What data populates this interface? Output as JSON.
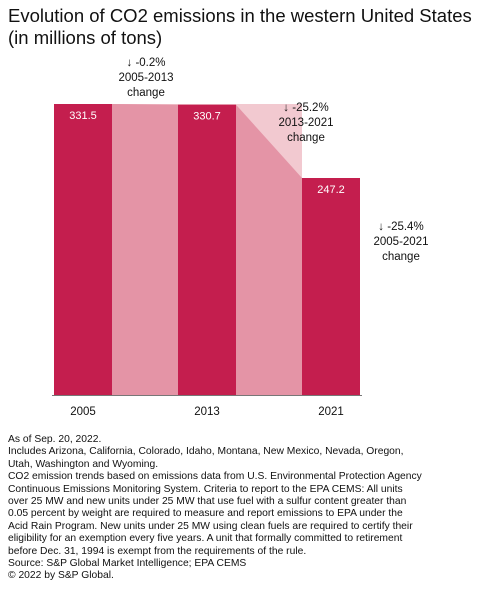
{
  "title_lines": [
    "Evolution of CO2 emissions in the western United States",
    "(in millions of tons)"
  ],
  "colors": {
    "bar": "#c41e4e",
    "connector_light": "#f2c9d0",
    "connector_mid": "#e494a6",
    "axis": "#777777",
    "text": "#111111",
    "bar_label": "#ffffff"
  },
  "chart_data": {
    "type": "bar",
    "categories": [
      "2005",
      "2013",
      "2021"
    ],
    "values": [
      331.5,
      330.7,
      247.2
    ],
    "value_labels": [
      "331.5",
      "330.7",
      "247.2"
    ],
    "ylim": [
      0,
      331.5
    ],
    "annotations": [
      {
        "id": "ann-2005-2013",
        "arrow": "↓",
        "lines": [
          "-0.2%",
          "2005-2013",
          "change"
        ]
      },
      {
        "id": "ann-2013-2021",
        "arrow": "↓",
        "lines": [
          "-25.2%",
          "2013-2021",
          "change"
        ]
      },
      {
        "id": "ann-2005-2021",
        "arrow": "↓",
        "lines": [
          "-25.4%",
          "2005-2021",
          "change"
        ]
      }
    ]
  },
  "notes": [
    "As of Sep. 20, 2022.",
    "Includes Arizona, California, Colorado, Idaho, Montana, New Mexico, Nevada, Oregon,",
    "Utah, Washington and Wyoming.",
    "CO2 emission trends based on emissions data from U.S. Environmental Protection Agency",
    "Continuous Emissions Monitoring System. Criteria to report to the EPA CEMS: All units",
    "over 25 MW and new units under 25 MW that use fuel with a sulfur content greater than",
    "0.05 percent by weight are required to measure and report emissions to EPA under the",
    "Acid Rain Program. New units under 25 MW using clean fuels are required to certify their",
    "eligibility for an exemption every five years. A unit that formally committed to retirement",
    "before Dec. 31, 1994 is exempt from the requirements of the rule.",
    "Source: S&P Global Market Intelligence; EPA CEMS",
    "© 2022 by S&P Global."
  ]
}
